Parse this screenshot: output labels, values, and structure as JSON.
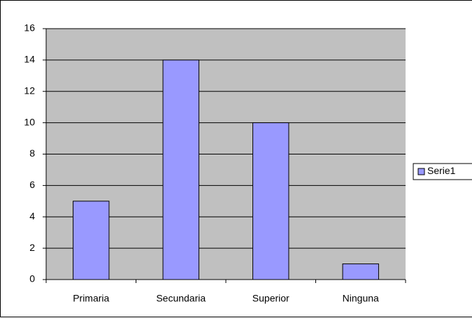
{
  "chart_data": {
    "type": "bar",
    "categories": [
      "Primaria",
      "Secundaria",
      "Superior",
      "Ninguna"
    ],
    "series": [
      {
        "name": "Serie1",
        "color": "#9999ff",
        "values": [
          5,
          14,
          10,
          1
        ]
      }
    ],
    "ylim": [
      0,
      16
    ],
    "yticks": [
      0,
      2,
      4,
      6,
      8,
      10,
      12,
      14,
      16
    ],
    "grid": true,
    "legend": "right",
    "plot_background": "#c0c0c0"
  }
}
